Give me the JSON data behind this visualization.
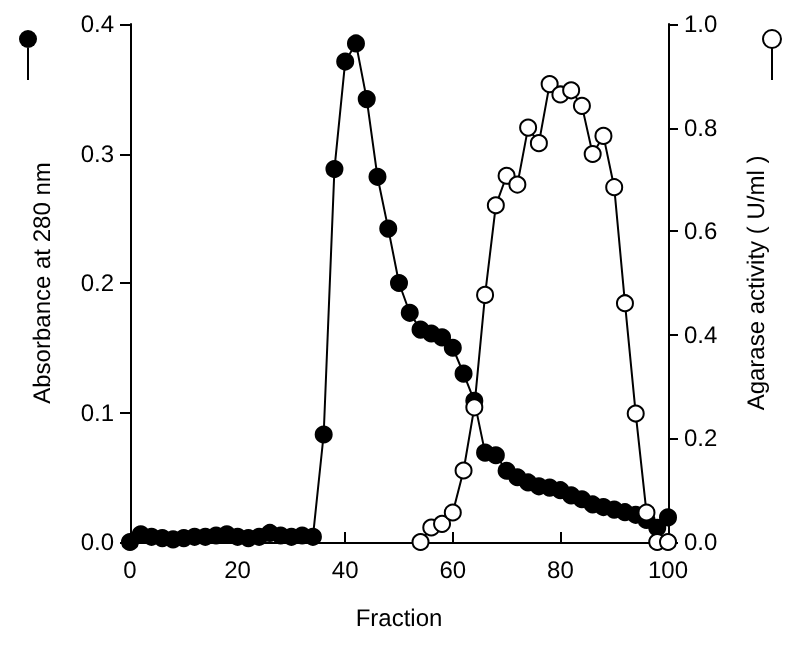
{
  "chart_data": {
    "type": "line",
    "xlabel": "Fraction",
    "ylabel": "Absorbance at 280 nm",
    "y2label": "Agarase activity ( U/ml )",
    "marker": "circle",
    "line_style": "solid",
    "grid": false,
    "xlim": [
      0,
      100
    ],
    "xticks": [
      0,
      20,
      40,
      60,
      80,
      100
    ],
    "ylim": [
      0,
      0.4
    ],
    "yticks": [
      {
        "value": 0,
        "label": "0.0"
      },
      {
        "value": 0.1,
        "label": "0.1"
      },
      {
        "value": 0.2,
        "label": "0.2"
      },
      {
        "value": 0.3,
        "label": "0.3"
      },
      {
        "value": 0.4,
        "label": "0.4"
      }
    ],
    "y2lim": [
      0,
      1
    ],
    "y2ticks": [
      {
        "value": 0,
        "label": "0.0"
      },
      {
        "value": 0.2,
        "label": "0.2"
      },
      {
        "value": 0.4,
        "label": "0.4"
      },
      {
        "value": 0.6,
        "label": "0.6"
      },
      {
        "value": 0.8,
        "label": "0.8"
      },
      {
        "value": 1,
        "label": "1.0"
      }
    ],
    "series": [
      {
        "color": "#000000",
        "x": [
          0,
          2,
          4,
          6,
          8,
          10,
          12,
          14,
          16,
          18,
          20,
          22,
          24,
          26,
          28,
          30,
          32,
          34,
          36,
          38,
          40,
          42,
          44,
          46,
          48,
          50,
          52,
          54,
          56,
          58,
          60,
          62,
          64,
          66,
          68,
          70,
          72,
          74,
          76,
          78,
          80,
          82,
          84,
          86,
          88,
          90,
          92,
          94,
          96,
          98,
          100
        ],
        "values": [
          0.0,
          0.006,
          0.004,
          0.003,
          0.002,
          0.003,
          0.004,
          0.004,
          0.005,
          0.006,
          0.004,
          0.003,
          0.004,
          0.007,
          0.005,
          0.004,
          0.005,
          0.004,
          0.083,
          0.288,
          0.371,
          0.385,
          0.342,
          0.282,
          0.242,
          0.2,
          0.177,
          0.164,
          0.161,
          0.158,
          0.15,
          0.13,
          0.109,
          0.069,
          0.067,
          0.055,
          0.05,
          0.046,
          0.043,
          0.042,
          0.04,
          0.036,
          0.033,
          0.029,
          0.027,
          0.025,
          0.023,
          0.021,
          0.017,
          0.011,
          0.019
        ]
      },
      {
        "color": "#ffffff",
        "axis": "y2",
        "x": [
          54,
          56,
          58,
          60,
          62,
          64,
          66,
          68,
          70,
          72,
          74,
          76,
          78,
          80,
          82,
          84,
          86,
          88,
          90,
          92,
          94,
          96,
          98,
          100
        ],
        "values": [
          0.0,
          0.028,
          0.035,
          0.057,
          0.138,
          0.26,
          0.477,
          0.65,
          0.707,
          0.69,
          0.8,
          0.77,
          0.884,
          0.864,
          0.872,
          0.842,
          0.749,
          0.784,
          0.685,
          0.461,
          0.248,
          0.057,
          0.0,
          0.0
        ]
      }
    ]
  }
}
